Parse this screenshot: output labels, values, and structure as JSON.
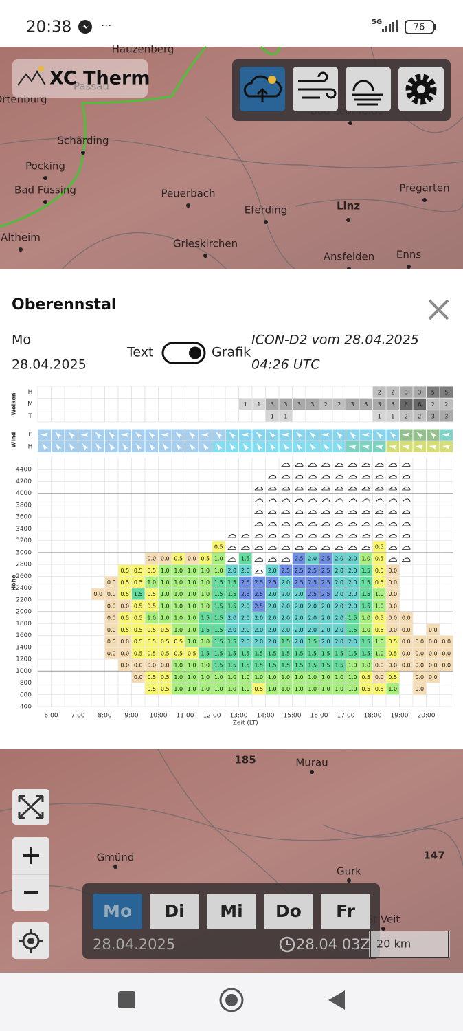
{
  "status_bar": {
    "time": "20:38",
    "network": "5G",
    "battery": "76"
  },
  "top_map": {
    "app_name": "XC Therm",
    "labels": [
      "Hauzenberg",
      "Passau",
      "Ortenburg",
      "Schärding",
      "Pocking",
      "Bad Füssing",
      "Peuerbach",
      "Eferding",
      "Linz",
      "Pregarten",
      "Altheim",
      "Grieskirchen",
      "Ansfelden",
      "Enns",
      "Bad Leonfelden"
    ]
  },
  "panel": {
    "title": "Oberennstal",
    "day": "Mo",
    "date": "28.04.2025",
    "toggle_left": "Text",
    "toggle_right": "Grafik",
    "model": "ICON-D2 vom 28.04.2025",
    "model_time": "04:26 UTC"
  },
  "chart": {
    "wolken_label": "Wolken",
    "wolken_rows": [
      "H",
      "M",
      "T"
    ],
    "wolken": [
      [
        null,
        null,
        null,
        null,
        null,
        null,
        null,
        null,
        null,
        null,
        null,
        null,
        null,
        null,
        null,
        null,
        null,
        null,
        null,
        null,
        null,
        null,
        null,
        null,
        null,
        "2",
        "2",
        "3",
        "3",
        "5",
        "5"
      ],
      [
        null,
        null,
        null,
        null,
        null,
        null,
        null,
        null,
        null,
        null,
        null,
        null,
        null,
        null,
        null,
        "1",
        "1",
        "3",
        "3",
        "3",
        "3",
        "2",
        "2",
        "3",
        "3",
        "3",
        "3",
        "6",
        "6",
        "2",
        "2"
      ],
      [
        null,
        null,
        null,
        null,
        null,
        null,
        null,
        null,
        null,
        null,
        null,
        null,
        null,
        null,
        null,
        null,
        null,
        "1",
        "1",
        null,
        null,
        null,
        null,
        null,
        null,
        "1",
        "1",
        "2",
        "2",
        "3",
        "3"
      ]
    ],
    "wind_label": "Wind",
    "wind_rows": [
      "F",
      "H"
    ],
    "y_label": "Höhe",
    "yticks": [
      400,
      600,
      800,
      1000,
      1200,
      1400,
      1600,
      1800,
      2000,
      2200,
      2400,
      2600,
      2800,
      3000,
      3200,
      3400,
      3600,
      3800,
      4000,
      4200,
      4400
    ],
    "x_label": "Zeit (LT)",
    "xticks": [
      "6:00",
      "7:00",
      "8:00",
      "9:00",
      "10:00",
      "11:00",
      "12:00",
      "13:00",
      "14:00",
      "15:00",
      "16:00",
      "17:00",
      "18:00",
      "19:00",
      "20:00"
    ],
    "thermik": [
      [
        null,
        null,
        null,
        null,
        null,
        null,
        null,
        null,
        null,
        null,
        null,
        null,
        null,
        null,
        null,
        null,
        null,
        null,
        "☁",
        "☁",
        "☁",
        "☁",
        "☁",
        "☁",
        "☁",
        "☁",
        "☁",
        "☁",
        null,
        null,
        null
      ],
      [
        null,
        null,
        null,
        null,
        null,
        null,
        null,
        null,
        null,
        null,
        null,
        null,
        null,
        null,
        null,
        null,
        null,
        "☁",
        "☁",
        "☁",
        "☁",
        "☁",
        "☁",
        "☁",
        "☁",
        "☁",
        "☁",
        "☁",
        null,
        null,
        null
      ],
      [
        null,
        null,
        null,
        null,
        null,
        null,
        null,
        null,
        null,
        null,
        null,
        null,
        null,
        null,
        null,
        null,
        "☁",
        "☁",
        "☁",
        "☁",
        "☁",
        "☁",
        "☁",
        "☁",
        "☁",
        "☁",
        "☁",
        "☁",
        null,
        null,
        null
      ],
      [
        null,
        null,
        null,
        null,
        null,
        null,
        null,
        null,
        null,
        null,
        null,
        null,
        null,
        null,
        null,
        null,
        "☁",
        "☁",
        "☁",
        "☁",
        "☁",
        "☁",
        "☁",
        "☁",
        "☁",
        "☁",
        "☁",
        "☁",
        null,
        null,
        null
      ],
      [
        null,
        null,
        null,
        null,
        null,
        null,
        null,
        null,
        null,
        null,
        null,
        null,
        null,
        null,
        null,
        null,
        "☁",
        "☁",
        "☁",
        "☁",
        "☁",
        "☁",
        "☁",
        "☁",
        "☁",
        "☁",
        "☁",
        "☁",
        null,
        null,
        null
      ],
      [
        null,
        null,
        null,
        null,
        null,
        null,
        null,
        null,
        null,
        null,
        null,
        null,
        null,
        null,
        null,
        null,
        "☁",
        "☁",
        "☁",
        "☁",
        "☁",
        "☁",
        "☁",
        "☁",
        "☁",
        "☁",
        "☁",
        "☁",
        null,
        null,
        null
      ],
      [
        null,
        null,
        null,
        null,
        null,
        null,
        null,
        null,
        null,
        null,
        null,
        null,
        null,
        null,
        "☁",
        "☁",
        "☁",
        "☁",
        "☁",
        "☁",
        "☁",
        "☁",
        "☁",
        "☁",
        "☁",
        "☁",
        "☁",
        "☁",
        null,
        null,
        null
      ],
      [
        null,
        null,
        null,
        null,
        null,
        null,
        null,
        null,
        null,
        null,
        null,
        null,
        null,
        "0.5",
        "☁",
        "☁",
        "☁",
        "☁",
        "☁",
        "☁",
        "☁",
        "☁",
        "☁",
        "☁",
        "☁",
        "0.5",
        "☁",
        "☁",
        null,
        null,
        null
      ],
      [
        null,
        null,
        null,
        null,
        null,
        null,
        null,
        null,
        "0.0",
        "0.0",
        "0.5",
        "0.0",
        "0.5",
        "1.0",
        "☁",
        "1.5",
        "☁",
        "☁",
        "☁",
        "2.5",
        "2.0",
        "2.5",
        "2.0",
        "2.0",
        "1.0",
        "0.5",
        "☁",
        "☁",
        null,
        null,
        null
      ],
      [
        null,
        null,
        null,
        null,
        null,
        null,
        "0.5",
        "0.5",
        "0.5",
        "1.0",
        "1.0",
        "1.0",
        "1.0",
        "1.0",
        "2.0",
        "2.0",
        "☁",
        "2.0",
        "2.5",
        "2.5",
        "2.5",
        "2.5",
        "2.0",
        "2.0",
        "1.5",
        "0.5",
        "0.0",
        null,
        null,
        null,
        null
      ],
      [
        null,
        null,
        null,
        null,
        null,
        "0.0",
        "0.5",
        "0.5",
        "1.0",
        "1.0",
        "1.0",
        "1.0",
        "1.0",
        "1.5",
        "1.5",
        "2.5",
        "2.5",
        "2.5",
        "2.0",
        "2.5",
        "2.5",
        "2.5",
        "2.0",
        "2.0",
        "1.5",
        "0.5",
        "0.0",
        null,
        null,
        null,
        null
      ],
      [
        null,
        null,
        null,
        null,
        "0.0",
        "0.0",
        "0.5",
        "1.5",
        "0.5",
        "1.0",
        "1.0",
        "1.0",
        "1.0",
        "1.5",
        "1.5",
        "2.5",
        "2.5",
        "2.0",
        "2.0",
        "2.0",
        "2.5",
        "2.5",
        "2.0",
        "2.0",
        "1.5",
        "1.0",
        "0.0",
        null,
        null,
        null,
        null
      ],
      [
        null,
        null,
        null,
        null,
        null,
        "0.0",
        "0.0",
        "0.5",
        "0.5",
        "1.0",
        "1.0",
        "1.0",
        "1.0",
        "1.5",
        "1.5",
        "2.0",
        "2.5",
        "2.0",
        "2.0",
        "2.0",
        "2.0",
        "2.0",
        "2.0",
        "2.0",
        "1.5",
        "1.0",
        "0.0",
        null,
        null,
        null,
        null
      ],
      [
        null,
        null,
        null,
        null,
        null,
        "0.0",
        "0.5",
        "0.5",
        "1.0",
        "1.0",
        "1.0",
        "1.0",
        "1.5",
        "1.5",
        "2.0",
        "2.0",
        "2.0",
        "2.0",
        "2.0",
        "2.0",
        "2.0",
        "2.0",
        "2.0",
        "1.5",
        "1.0",
        "0.5",
        "0.0",
        "0.0",
        null,
        null,
        null
      ],
      [
        null,
        null,
        null,
        null,
        null,
        "0.0",
        "0.5",
        "0.5",
        "0.5",
        "0.5",
        "1.0",
        "1.0",
        "1.5",
        "1.5",
        "2.0",
        "2.0",
        "2.0",
        "2.0",
        "2.0",
        "2.0",
        "2.0",
        "2.0",
        "2.0",
        "1.5",
        "1.0",
        "0.5",
        "0.0",
        "0.0",
        null,
        "0.0",
        null
      ],
      [
        null,
        null,
        null,
        null,
        null,
        "0.0",
        "0.0",
        "0.5",
        "0.5",
        "0.5",
        "0.5",
        "1.0",
        "1.0",
        "1.5",
        "1.5",
        "2.0",
        "2.0",
        "2.0",
        "1.5",
        "2.0",
        "1.5",
        "2.0",
        "2.0",
        "2.0",
        "1.5",
        "1.0",
        "0.5",
        "0.0",
        "0.0",
        "0.0",
        "0.0"
      ],
      [
        null,
        null,
        null,
        null,
        null,
        "0.0",
        "0.0",
        "0.5",
        "0.5",
        "0.5",
        "0.5",
        "0.5",
        "1.5",
        "1.5",
        "1.5",
        "1.5",
        "1.5",
        "1.5",
        "1.5",
        "1.5",
        "1.5",
        "1.5",
        "1.5",
        "1.5",
        "1.5",
        "1.0",
        "0.5",
        "0.0",
        "0.0",
        "0.0",
        "0.0"
      ],
      [
        null,
        null,
        null,
        null,
        null,
        null,
        "0.0",
        "0.0",
        "0.0",
        "0.0",
        "1.0",
        "1.0",
        "1.0",
        "1.5",
        "1.5",
        "1.5",
        "1.5",
        "1.5",
        "1.5",
        "1.5",
        "1.5",
        "1.5",
        "1.5",
        "1.0",
        "1.0",
        "0.0",
        "0.0",
        "0.0",
        "0.0",
        "0.0",
        "0.0"
      ],
      [
        null,
        null,
        null,
        null,
        null,
        null,
        null,
        "0.0",
        "0.5",
        "0.5",
        "1.0",
        "1.0",
        "1.0",
        "1.0",
        "1.0",
        "1.0",
        "1.0",
        "1.0",
        "1.0",
        "1.0",
        "1.0",
        "1.0",
        "1.0",
        "1.0",
        "0.5",
        "0.0",
        "0.5",
        null,
        "0.0",
        "0.0",
        null
      ],
      [
        null,
        null,
        null,
        null,
        null,
        null,
        null,
        null,
        "0.5",
        "0.5",
        "1.0",
        "1.0",
        "1.0",
        "1.0",
        "1.0",
        "1.0",
        "0.5",
        "1.0",
        "1.0",
        "1.0",
        "1.0",
        "1.0",
        "1.0",
        "1.0",
        "0.5",
        "0.5",
        "1.0",
        null,
        "0.0",
        null,
        null
      ]
    ]
  },
  "bottom_map": {
    "labels": [
      "185",
      "Murau",
      "147",
      "Gmünd",
      "Gurk",
      "St Veit"
    ],
    "days": [
      "Mo",
      "Di",
      "Mi",
      "Do",
      "Fr"
    ],
    "date": "28.04.2025",
    "run": "28.04 03Z",
    "scale": "20 km"
  }
}
